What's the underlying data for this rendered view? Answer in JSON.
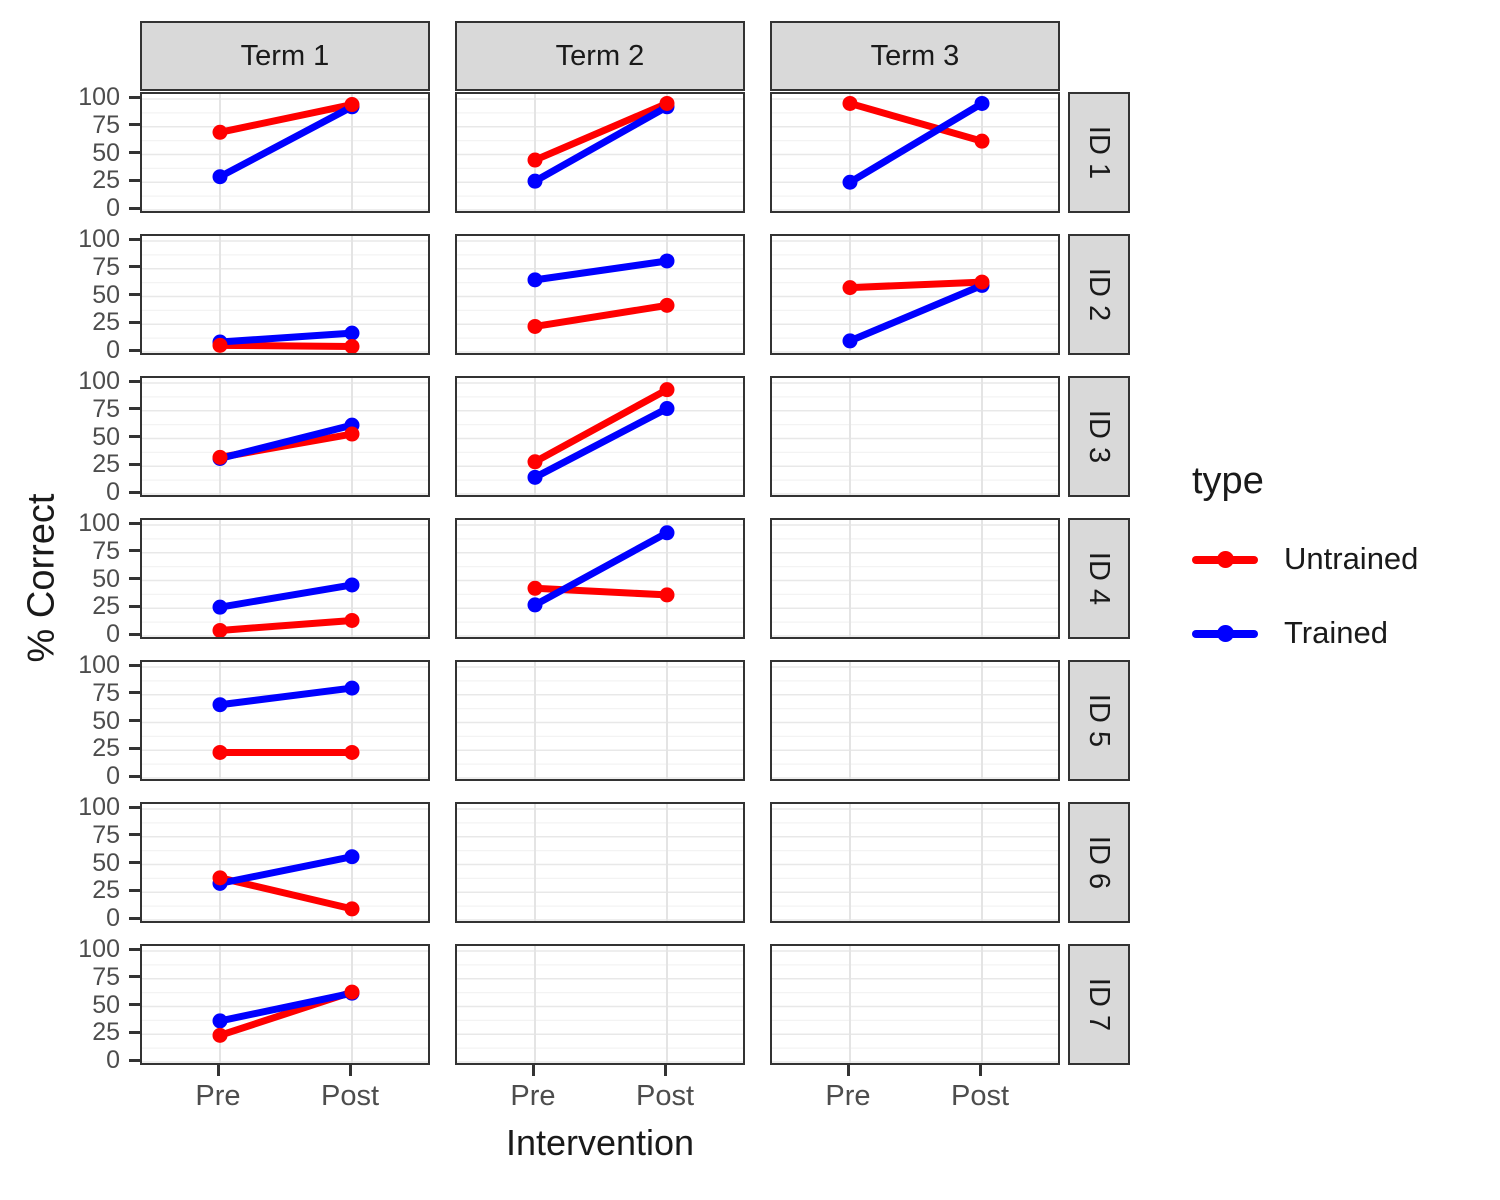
{
  "axes": {
    "y_label": "% Correct",
    "x_label": "Intervention"
  },
  "legend": {
    "title": "type",
    "items": [
      {
        "label": "Untrained",
        "color": "#FF0000"
      },
      {
        "label": "Trained",
        "color": "#0000FF"
      }
    ]
  },
  "chart_data": {
    "type": "line",
    "title": "",
    "xlabel": "Intervention",
    "ylabel": "% Correct",
    "x": [
      "Pre",
      "Post"
    ],
    "ylim": [
      0,
      100
    ],
    "y_ticks": [
      0,
      25,
      50,
      75,
      100
    ],
    "grid": "horizontal major+minor light gray, vertical lines at Pre/Post",
    "legend_position": "right",
    "legend_title": "type",
    "facet_cols": [
      "Term 1",
      "Term 2",
      "Term 3"
    ],
    "facet_rows": [
      "ID 1",
      "ID 2",
      "ID 3",
      "ID 4",
      "ID 5",
      "ID 6",
      "ID 7"
    ],
    "series_colors": {
      "Untrained": "#FF0000",
      "Trained": "#0000FF"
    },
    "panels": [
      {
        "row": "ID 1",
        "col": "Term 1",
        "series": [
          {
            "name": "Untrained",
            "values": [
              70,
              95
            ]
          },
          {
            "name": "Trained",
            "values": [
              30,
              93
            ]
          }
        ]
      },
      {
        "row": "ID 1",
        "col": "Term 2",
        "series": [
          {
            "name": "Untrained",
            "values": [
              45,
              96
            ]
          },
          {
            "name": "Trained",
            "values": [
              26,
              93
            ]
          }
        ]
      },
      {
        "row": "ID 1",
        "col": "Term 3",
        "series": [
          {
            "name": "Untrained",
            "values": [
              96,
              62
            ]
          },
          {
            "name": "Trained",
            "values": [
              25,
              96
            ]
          }
        ]
      },
      {
        "row": "ID 2",
        "col": "Term 1",
        "series": [
          {
            "name": "Untrained",
            "values": [
              6,
              5
            ]
          },
          {
            "name": "Trained",
            "values": [
              9,
              17
            ]
          }
        ]
      },
      {
        "row": "ID 2",
        "col": "Term 2",
        "series": [
          {
            "name": "Untrained",
            "values": [
              23,
              42
            ]
          },
          {
            "name": "Trained",
            "values": [
              65,
              82
            ]
          }
        ]
      },
      {
        "row": "ID 2",
        "col": "Term 3",
        "series": [
          {
            "name": "Untrained",
            "values": [
              58,
              63
            ]
          },
          {
            "name": "Trained",
            "values": [
              10,
              60
            ]
          }
        ]
      },
      {
        "row": "ID 3",
        "col": "Term 1",
        "series": [
          {
            "name": "Untrained",
            "values": [
              33,
              54
            ]
          },
          {
            "name": "Trained",
            "values": [
              32,
              62
            ]
          }
        ]
      },
      {
        "row": "ID 3",
        "col": "Term 2",
        "series": [
          {
            "name": "Untrained",
            "values": [
              29,
              94
            ]
          },
          {
            "name": "Trained",
            "values": [
              15,
              77
            ]
          }
        ]
      },
      {
        "row": "ID 3",
        "col": "Term 3",
        "series": []
      },
      {
        "row": "ID 4",
        "col": "Term 1",
        "series": [
          {
            "name": "Untrained",
            "values": [
              5,
              14
            ]
          },
          {
            "name": "Trained",
            "values": [
              26,
              46
            ]
          }
        ]
      },
      {
        "row": "ID 4",
        "col": "Term 2",
        "series": [
          {
            "name": "Untrained",
            "values": [
              43,
              37
            ]
          },
          {
            "name": "Trained",
            "values": [
              28,
              93
            ]
          }
        ]
      },
      {
        "row": "ID 4",
        "col": "Term 3",
        "series": []
      },
      {
        "row": "ID 5",
        "col": "Term 1",
        "series": [
          {
            "name": "Untrained",
            "values": [
              23,
              23
            ]
          },
          {
            "name": "Trained",
            "values": [
              66,
              81
            ]
          }
        ]
      },
      {
        "row": "ID 5",
        "col": "Term 2",
        "series": []
      },
      {
        "row": "ID 5",
        "col": "Term 3",
        "series": []
      },
      {
        "row": "ID 6",
        "col": "Term 1",
        "series": [
          {
            "name": "Untrained",
            "values": [
              38,
              10
            ]
          },
          {
            "name": "Trained",
            "values": [
              33,
              57
            ]
          }
        ]
      },
      {
        "row": "ID 6",
        "col": "Term 2",
        "series": []
      },
      {
        "row": "ID 6",
        "col": "Term 3",
        "series": []
      },
      {
        "row": "ID 7",
        "col": "Term 1",
        "series": [
          {
            "name": "Untrained",
            "values": [
              24,
              63
            ]
          },
          {
            "name": "Trained",
            "values": [
              37,
              62
            ]
          }
        ]
      },
      {
        "row": "ID 7",
        "col": "Term 2",
        "series": []
      },
      {
        "row": "ID 7",
        "col": "Term 3",
        "series": []
      }
    ]
  }
}
